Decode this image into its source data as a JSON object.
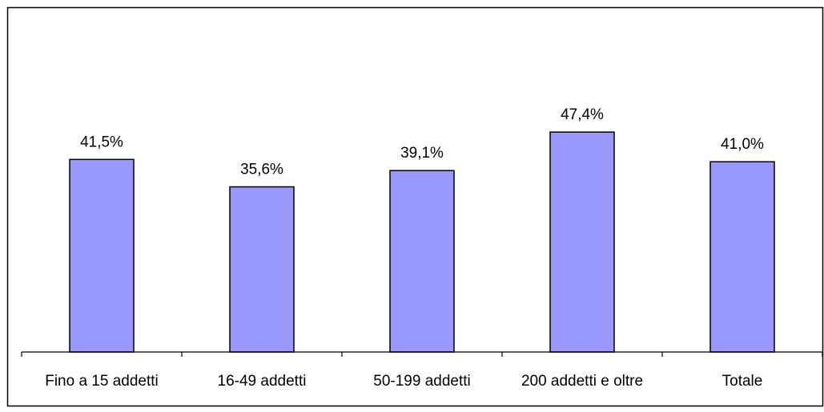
{
  "chart_data": {
    "type": "bar",
    "categories": [
      "Fino a 15 addetti",
      "16-49 addetti",
      "50-199 addetti",
      "200 addetti e oltre",
      "Totale"
    ],
    "values": [
      41.5,
      35.6,
      39.1,
      47.4,
      41.0
    ],
    "data_labels": [
      "41,5%",
      "35,6%",
      "39,1%",
      "47,4%",
      "41,0%"
    ],
    "ylim": [
      0,
      70
    ],
    "grid": false,
    "legend": "none",
    "bar_color": "#9999ff",
    "bar_outline_color": "#000000",
    "title": "",
    "xlabel": "",
    "ylabel": ""
  }
}
